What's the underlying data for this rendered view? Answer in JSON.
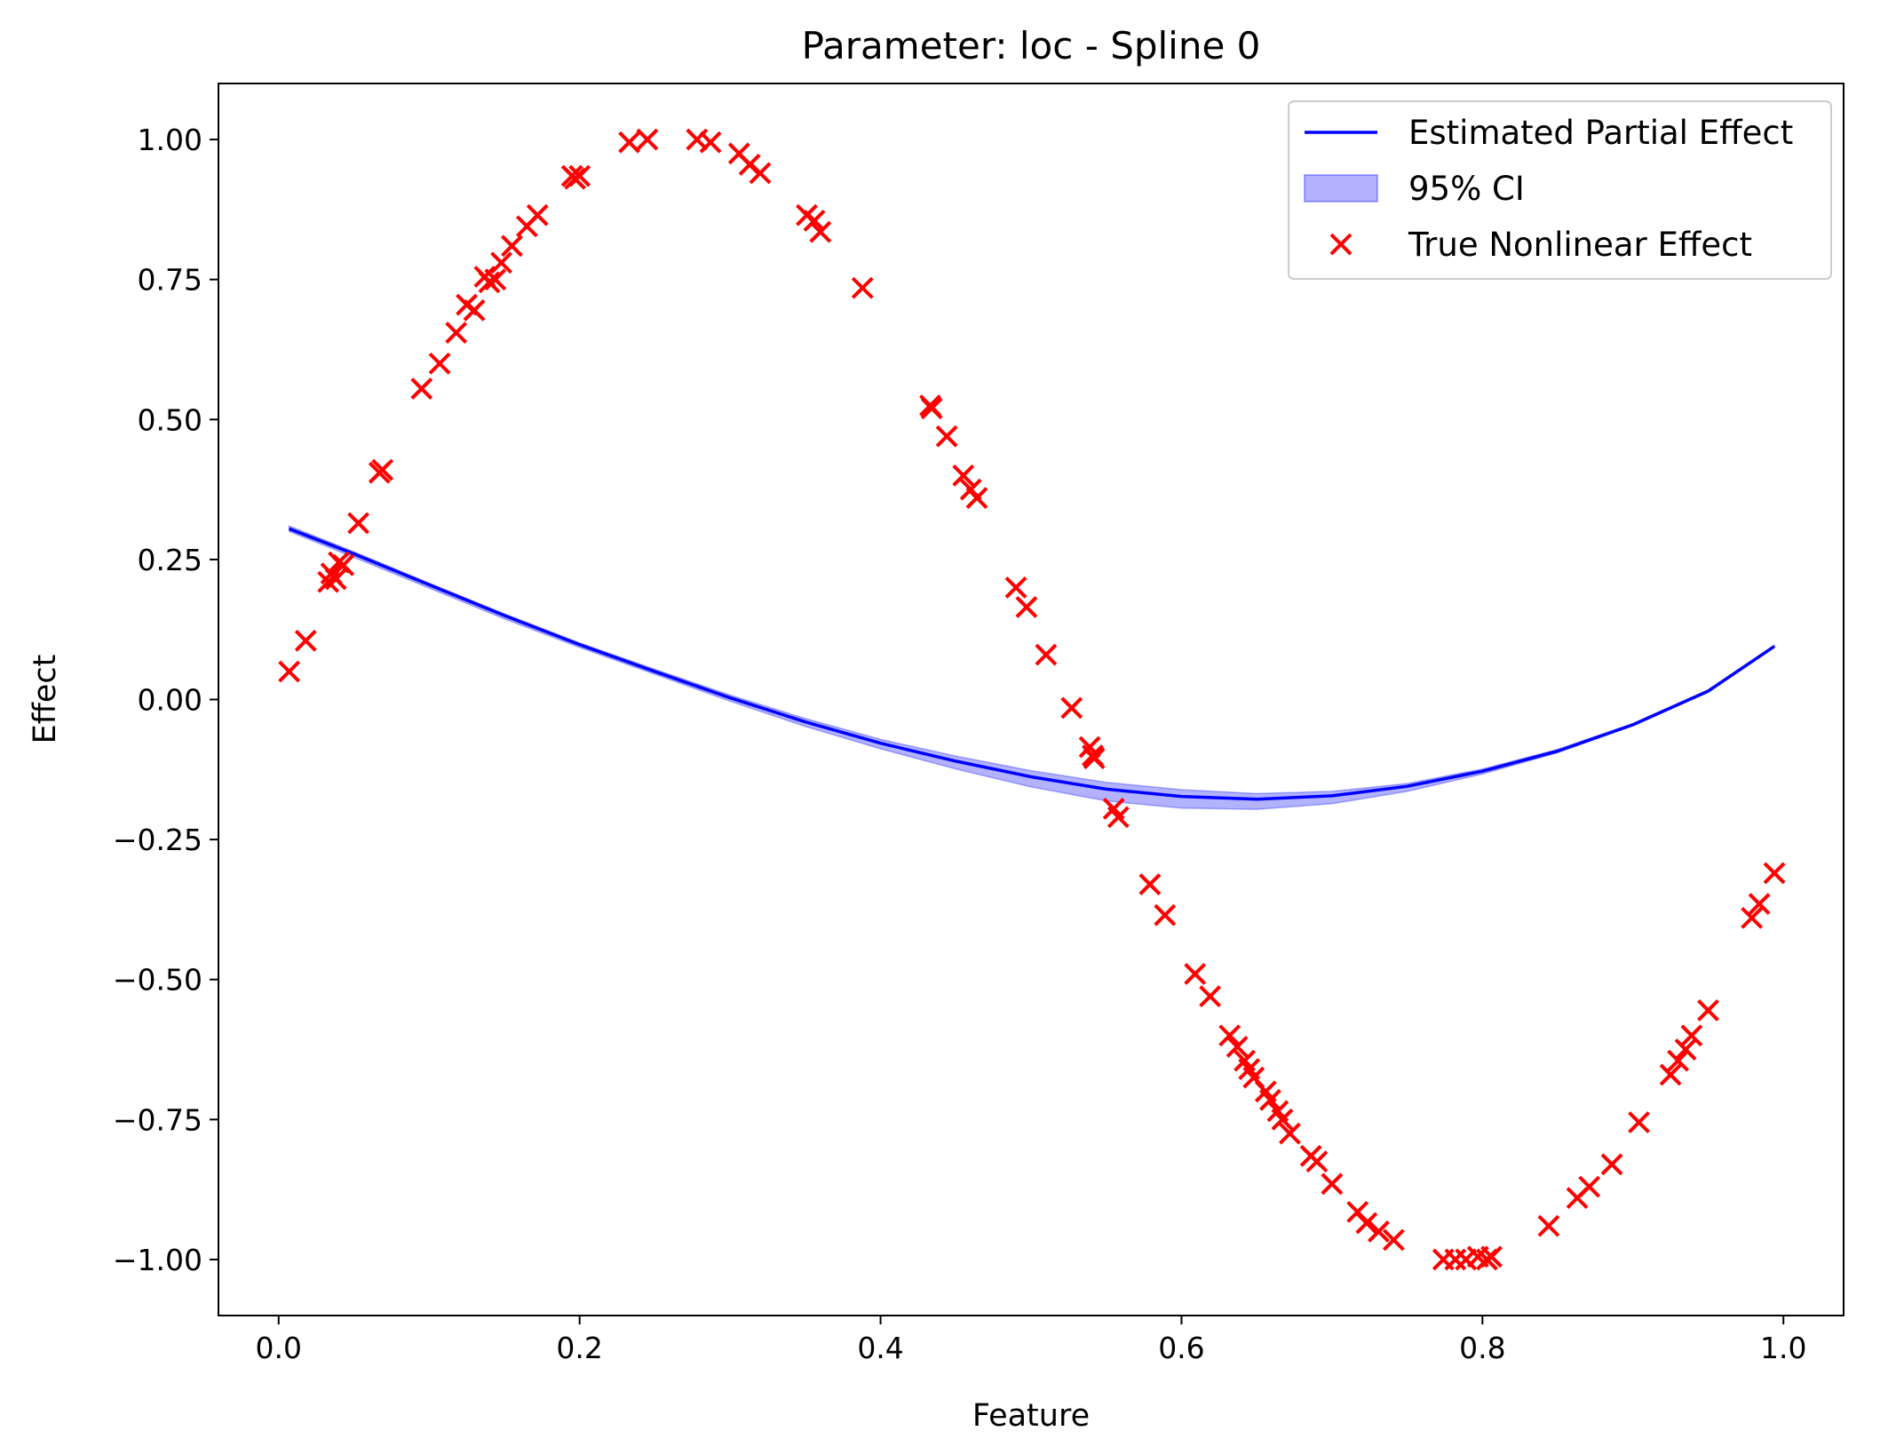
{
  "chart_data": {
    "type": "line",
    "title": "Parameter: loc - Spline 0",
    "xlabel": "Feature",
    "ylabel": "Effect",
    "xlim": [
      -0.04,
      1.04
    ],
    "ylim": [
      -1.1,
      1.1
    ],
    "xticks": [
      0.0,
      0.2,
      0.4,
      0.6,
      0.8,
      1.0
    ],
    "xtick_labels": [
      "0.0",
      "0.2",
      "0.4",
      "0.6",
      "0.8",
      "1.0"
    ],
    "yticks": [
      1.0,
      0.75,
      0.5,
      0.25,
      0.0,
      -0.25,
      -0.5,
      -0.75,
      -1.0
    ],
    "ytick_labels": [
      "1.00",
      "0.75",
      "0.50",
      "0.25",
      "0.00",
      "−0.25",
      "−0.50",
      "−0.75",
      "−1.00"
    ],
    "grid": false,
    "legend_position": "top-right",
    "legend": [
      {
        "label": "Estimated Partial Effect",
        "kind": "line",
        "color": "#0000ff"
      },
      {
        "label": "95% CI",
        "kind": "band",
        "color": "#0000ff"
      },
      {
        "label": "True Nonlinear Effect",
        "kind": "marker",
        "color": "#ff0000"
      }
    ],
    "estimated_effect": {
      "color": "#0000ff",
      "x": [
        0.007,
        0.05,
        0.1,
        0.15,
        0.2,
        0.25,
        0.3,
        0.35,
        0.4,
        0.45,
        0.5,
        0.55,
        0.6,
        0.65,
        0.7,
        0.75,
        0.8,
        0.85,
        0.9,
        0.95,
        0.994
      ],
      "y": [
        0.305,
        0.26,
        0.205,
        0.15,
        0.098,
        0.05,
        0.003,
        -0.04,
        -0.078,
        -0.11,
        -0.138,
        -0.16,
        -0.173,
        -0.178,
        -0.172,
        -0.155,
        -0.128,
        -0.092,
        -0.045,
        0.015,
        0.095
      ]
    },
    "confidence_interval": {
      "color": "#0000ff",
      "x": [
        0.007,
        0.05,
        0.1,
        0.15,
        0.2,
        0.25,
        0.3,
        0.35,
        0.4,
        0.45,
        0.5,
        0.55,
        0.6,
        0.65,
        0.7,
        0.75,
        0.8,
        0.85,
        0.9,
        0.95,
        0.994
      ],
      "lower": [
        0.3,
        0.254,
        0.199,
        0.144,
        0.093,
        0.045,
        -0.003,
        -0.048,
        -0.088,
        -0.124,
        -0.156,
        -0.181,
        -0.194,
        -0.196,
        -0.186,
        -0.164,
        -0.133,
        -0.095,
        -0.047,
        0.013,
        0.093
      ],
      "upper": [
        0.31,
        0.264,
        0.208,
        0.153,
        0.101,
        0.054,
        0.008,
        -0.034,
        -0.071,
        -0.101,
        -0.127,
        -0.148,
        -0.161,
        -0.168,
        -0.164,
        -0.15,
        -0.124,
        -0.089,
        -0.043,
        0.017,
        0.097
      ]
    },
    "true_effect": {
      "color": "#ff0000",
      "marker": "x",
      "x": [
        0.007,
        0.018,
        0.033,
        0.035,
        0.038,
        0.04,
        0.043,
        0.053,
        0.067,
        0.069,
        0.095,
        0.107,
        0.118,
        0.125,
        0.13,
        0.137,
        0.14,
        0.144,
        0.148,
        0.155,
        0.165,
        0.172,
        0.195,
        0.197,
        0.2,
        0.233,
        0.245,
        0.278,
        0.287,
        0.306,
        0.313,
        0.32,
        0.351,
        0.356,
        0.36,
        0.388,
        0.433,
        0.434,
        0.444,
        0.455,
        0.46,
        0.464,
        0.49,
        0.497,
        0.51,
        0.527,
        0.539,
        0.541,
        0.542,
        0.555,
        0.558,
        0.579,
        0.589,
        0.609,
        0.619,
        0.632,
        0.637,
        0.642,
        0.645,
        0.648,
        0.656,
        0.659,
        0.664,
        0.667,
        0.672,
        0.686,
        0.69,
        0.7,
        0.717,
        0.723,
        0.731,
        0.741,
        0.774,
        0.782,
        0.789,
        0.797,
        0.803,
        0.806,
        0.844,
        0.863,
        0.871,
        0.886,
        0.904,
        0.925,
        0.93,
        0.935,
        0.939,
        0.95,
        0.979,
        0.984,
        0.994
      ],
      "y": [
        0.05,
        0.105,
        0.21,
        0.225,
        0.215,
        0.245,
        0.24,
        0.315,
        0.405,
        0.41,
        0.555,
        0.6,
        0.655,
        0.705,
        0.695,
        0.755,
        0.745,
        0.75,
        0.78,
        0.81,
        0.845,
        0.865,
        0.935,
        0.93,
        0.935,
        0.995,
        1.0,
        1.0,
        0.995,
        0.975,
        0.955,
        0.94,
        0.865,
        0.855,
        0.835,
        0.735,
        0.525,
        0.52,
        0.47,
        0.4,
        0.375,
        0.36,
        0.2,
        0.165,
        0.08,
        -0.015,
        -0.085,
        -0.1,
        -0.105,
        -0.195,
        -0.21,
        -0.33,
        -0.385,
        -0.49,
        -0.53,
        -0.6,
        -0.62,
        -0.645,
        -0.66,
        -0.675,
        -0.7,
        -0.715,
        -0.735,
        -0.75,
        -0.775,
        -0.815,
        -0.825,
        -0.865,
        -0.915,
        -0.935,
        -0.95,
        -0.965,
        -1.0,
        -1.0,
        -1.0,
        -0.995,
        -1.0,
        -0.995,
        -0.94,
        -0.89,
        -0.87,
        -0.83,
        -0.755,
        -0.67,
        -0.645,
        -0.625,
        -0.6,
        -0.555,
        -0.39,
        -0.365,
        -0.31
      ]
    }
  }
}
